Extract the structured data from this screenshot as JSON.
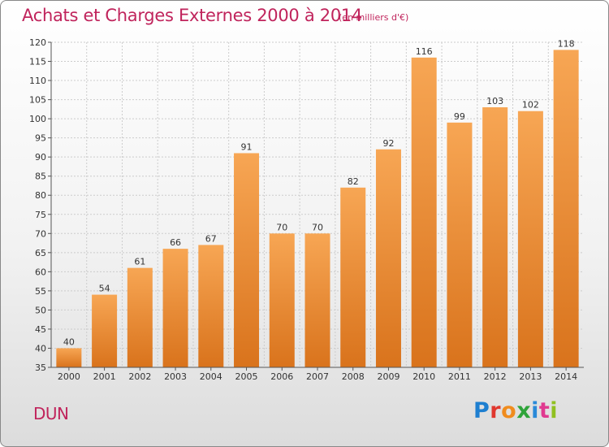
{
  "header": {
    "title": "Achats et Charges Externes 2000 à 2014",
    "unit": "(en milliers d'€)"
  },
  "footer": {
    "commune": "DUN",
    "brand_letters": [
      "P",
      "r",
      "o",
      "x",
      "i",
      "t",
      "i"
    ],
    "brand_colors": [
      "#1e7fd0",
      "#e0382f",
      "#f08c1e",
      "#2ea43a",
      "#2a8ad8",
      "#e03a90",
      "#90c020"
    ]
  },
  "colors": {
    "bar_light": "#f7a654",
    "bar_dark": "#d9731c",
    "title": "#c0245c"
  },
  "chart_data": {
    "type": "bar",
    "title": "Achats et Charges Externes 2000 à 2014",
    "subtitle": "(en milliers d'€)",
    "categories": [
      "2000",
      "2001",
      "2002",
      "2003",
      "2004",
      "2005",
      "2006",
      "2007",
      "2008",
      "2009",
      "2010",
      "2011",
      "2012",
      "2013",
      "2014"
    ],
    "values": [
      40,
      54,
      61,
      66,
      67,
      91,
      70,
      70,
      82,
      92,
      116,
      99,
      103,
      102,
      118
    ],
    "ylim": [
      35,
      120
    ],
    "yticks": [
      35,
      40,
      45,
      50,
      55,
      60,
      65,
      70,
      75,
      80,
      85,
      90,
      95,
      100,
      105,
      110,
      115,
      120
    ],
    "grid": true,
    "legend": "none"
  }
}
